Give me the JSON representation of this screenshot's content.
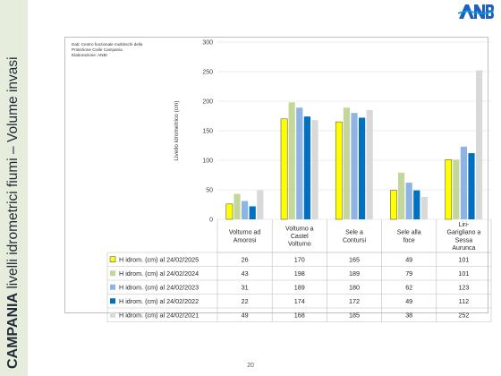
{
  "slide": {
    "side_title_bold": "CAMPANIA",
    "side_title_rest": " livelli idrometrici fiumi – Volume invasi",
    "page_number": "20",
    "logo_text": "ANBI",
    "source_note": "Dati: Centro funzionale multirischi della\nProtezione Civile Campania\nElaborazione: ANBI"
  },
  "colors": {
    "sidebar": "#e7eddc",
    "logo": "#1f5fbf"
  },
  "chart_data": {
    "type": "bar",
    "ylabel": "Livello idrometrico (cm)",
    "ylim": [
      0,
      300
    ],
    "yticks": [
      0,
      50,
      100,
      150,
      200,
      250,
      300
    ],
    "grid": true,
    "legend": "table",
    "categories": [
      "Volturno ad Amorosi",
      "Volturno a Castel Volturno",
      "Sele a Contursi",
      "Sele alla foce",
      "Liri- Garigliano a Sessa Aurunca"
    ],
    "series": [
      {
        "name": "H idrom. (cm) al 24/02/2025",
        "color": "#ffff00",
        "values": [
          26,
          170,
          165,
          49,
          101
        ]
      },
      {
        "name": "H idrom. (cm) al 24/02/2024",
        "color": "#c4d79b",
        "values": [
          43,
          198,
          189,
          79,
          101
        ]
      },
      {
        "name": "H idrom. (cm) al 24/02/2023",
        "color": "#8db4e2",
        "values": [
          31,
          189,
          180,
          62,
          123
        ]
      },
      {
        "name": "H idrom. (cm) al 24/02/2022",
        "color": "#0070c0",
        "values": [
          22,
          174,
          172,
          49,
          112
        ]
      },
      {
        "name": "H idrom. (cm) al 24/02/2021",
        "color": "#d9d9d9",
        "values": [
          49,
          168,
          185,
          38,
          252
        ]
      }
    ]
  }
}
